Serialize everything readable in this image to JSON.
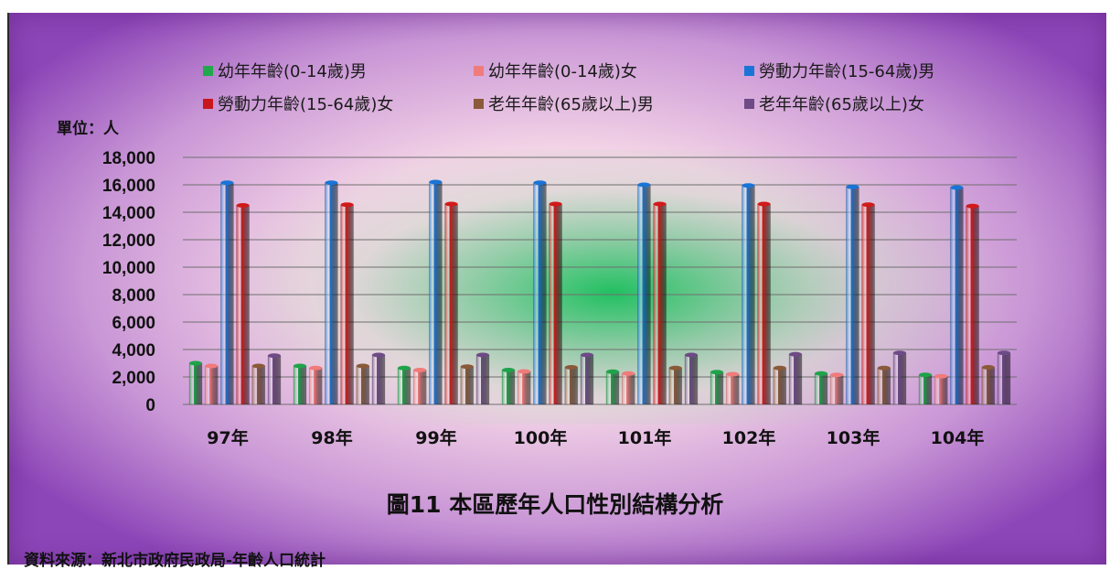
{
  "chart_data": {
    "type": "bar",
    "title": "",
    "xlabel": "",
    "ylabel": "",
    "unit_label": "單位：人",
    "categories": [
      "97年",
      "98年",
      "99年",
      "100年",
      "101年",
      "102年",
      "103年",
      "104年"
    ],
    "series": [
      {
        "name": "幼年年齡(0-14歲)男",
        "color": "#1fa34a",
        "values": [
          3000,
          2800,
          2650,
          2500,
          2380,
          2350,
          2250,
          2150
        ]
      },
      {
        "name": "幼年年齡(0-14歲)女",
        "color": "#f07b7b",
        "values": [
          2800,
          2650,
          2500,
          2400,
          2250,
          2200,
          2150,
          2050
        ]
      },
      {
        "name": "勞動力年齡(15-64歲)男",
        "color": "#1a74d6",
        "values": [
          16150,
          16150,
          16200,
          16150,
          16000,
          15950,
          15850,
          15800
        ]
      },
      {
        "name": "勞動力年齡(15-64歲)女",
        "color": "#d11a1a",
        "values": [
          14500,
          14550,
          14600,
          14600,
          14600,
          14600,
          14550,
          14450
        ]
      },
      {
        "name": "老年年齡(65歲以上)男",
        "color": "#8a5a3a",
        "values": [
          2800,
          2800,
          2750,
          2700,
          2650,
          2650,
          2650,
          2700
        ]
      },
      {
        "name": "老年年齡(65歲以上)女",
        "color": "#6e4a86",
        "values": [
          3550,
          3600,
          3600,
          3600,
          3600,
          3650,
          3750,
          3750
        ]
      }
    ],
    "ylim": [
      0,
      18000
    ],
    "yticks": [
      "0",
      "2,000",
      "4,000",
      "6,000",
      "8,000",
      "10,000",
      "12,000",
      "14,000",
      "16,000",
      "18,000"
    ],
    "grid": true,
    "legend_position": "top"
  },
  "legend_items": [
    {
      "label": "幼年年齡(0-14歲)男",
      "color": "#22a84c"
    },
    {
      "label": "幼年年齡(0-14歲)女",
      "color": "#f07b7b"
    },
    {
      "label": "勞動力年齡(15-64歲)男",
      "color": "#1a74d6"
    },
    {
      "label": "勞動力年齡(15-64歲)女",
      "color": "#c8161c"
    },
    {
      "label": "老年年齡(65歲以上)男",
      "color": "#8a5a3a"
    },
    {
      "label": "老年年齡(65歲以上)女",
      "color": "#6e4a86"
    }
  ],
  "caption": "圖11 本區歷年人口性別結構分析",
  "source": "資料來源：新北市政府民政局-年齡人口統計"
}
